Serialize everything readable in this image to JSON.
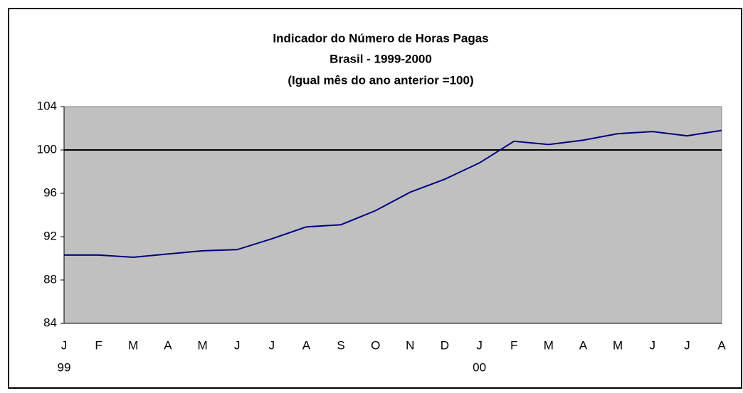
{
  "chart_data": {
    "type": "line",
    "title": [
      "Indicador do Número de Horas Pagas",
      "Brasil - 1999-2000",
      "(Igual mês do ano anterior =100)"
    ],
    "categories": [
      "J",
      "F",
      "M",
      "A",
      "M",
      "J",
      "J",
      "A",
      "S",
      "O",
      "N",
      "D",
      "J",
      "F",
      "M",
      "A",
      "M",
      "J",
      "J",
      "A"
    ],
    "year_labels": [
      "99",
      null,
      null,
      null,
      null,
      null,
      null,
      null,
      null,
      null,
      null,
      null,
      "00",
      null,
      null,
      null,
      null,
      null,
      null,
      null
    ],
    "series": [
      {
        "color": "#000080",
        "values": [
          90.3,
          90.3,
          90.1,
          90.4,
          90.7,
          90.8,
          91.8,
          92.9,
          93.1,
          94.4,
          96.1,
          97.3,
          98.8,
          100.8,
          100.5,
          100.9,
          101.5,
          101.7,
          101.3,
          101.8
        ]
      }
    ],
    "reference_line": {
      "value": 100,
      "color": "#000000"
    },
    "ylim": [
      84,
      104
    ],
    "yticks": [
      84,
      88,
      92,
      96,
      100,
      104
    ],
    "plot_background": "#c0c0c0"
  }
}
